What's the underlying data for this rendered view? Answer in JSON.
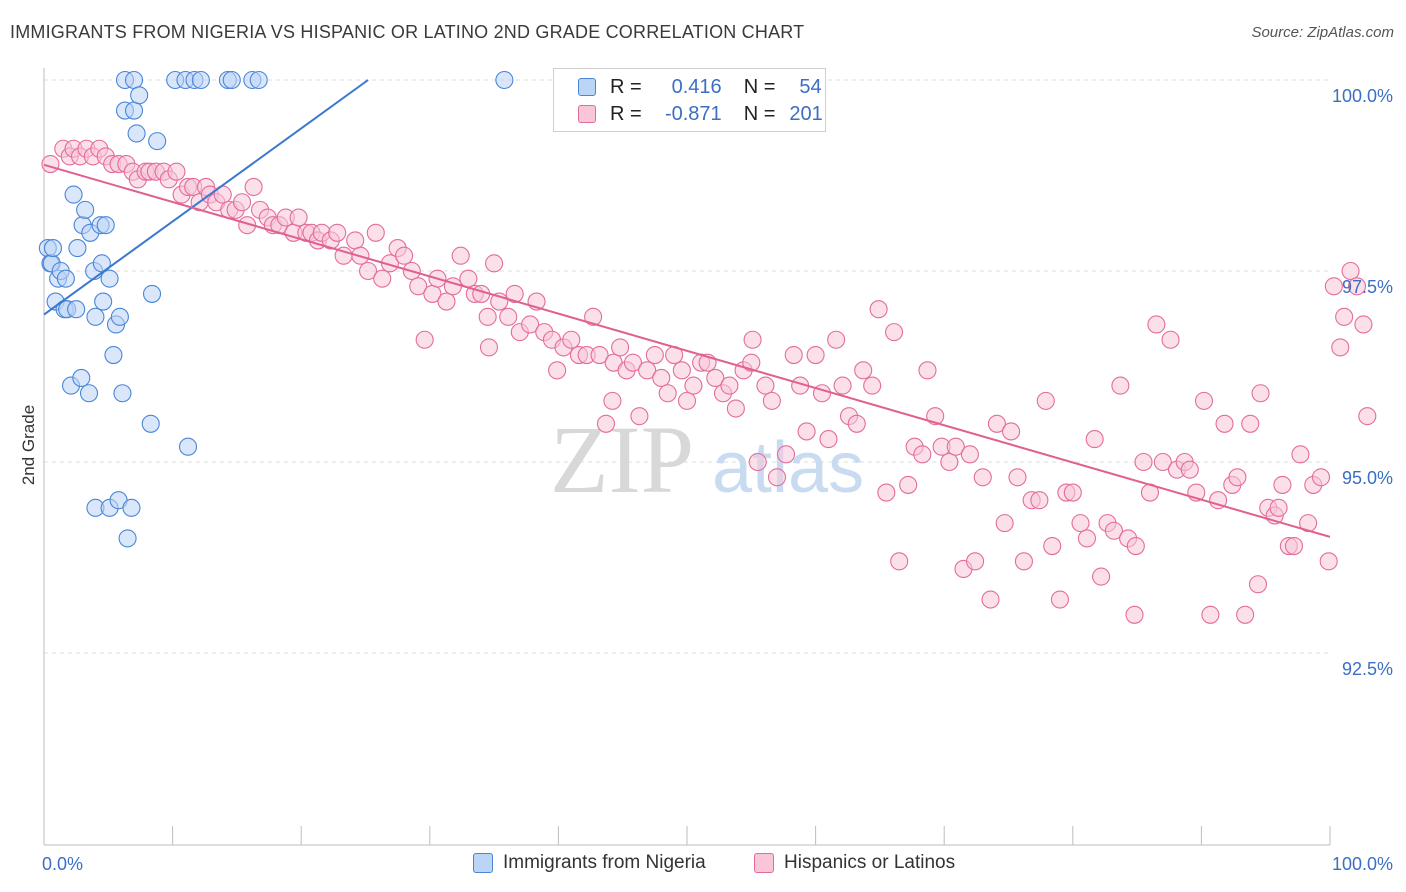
{
  "title": "IMMIGRANTS FROM NIGERIA VS HISPANIC OR LATINO 2ND GRADE CORRELATION CHART",
  "source": "Source: ZipAtlas.com",
  "watermark": {
    "zip": "ZIP",
    "atlas": "atlas"
  },
  "colors": {
    "blue": "#4a86d8",
    "blue_fill": "#bcd4f5",
    "blue_line": "#3a78d0",
    "pink": "#e46c9b",
    "pink_fill": "#f8c6d8",
    "pink_line": "#e0608f",
    "axis_label": "#3b6fc4",
    "grid": "#dcdcdc"
  },
  "legend": {
    "r_label": "R =",
    "n_label": "N =",
    "rows": [
      {
        "r": "0.416",
        "n": "54"
      },
      {
        "r": "-0.871",
        "n": "201"
      }
    ]
  },
  "bottom_legend": [
    "Immigrants from Nigeria",
    "Hispanics or Latinos"
  ],
  "chart_data": {
    "type": "scatter",
    "title": "IMMIGRANTS FROM NIGERIA VS HISPANIC OR LATINO 2ND GRADE CORRELATION CHART",
    "xlabel": "",
    "ylabel": "2nd Grade",
    "xlim": [
      0,
      100
    ],
    "ylim": [
      90.0,
      100.5
    ],
    "x_tick_labels": [
      "0.0%",
      "100.0%"
    ],
    "y_ticks": [
      92.5,
      95.0,
      97.5,
      100.0
    ],
    "y_tick_labels": [
      "92.5%",
      "95.0%",
      "97.5%",
      "100.0%"
    ],
    "grid": true,
    "legend_position": "top-center",
    "series": [
      {
        "name": "Immigrants from Nigeria",
        "color": "blue",
        "trend": {
          "x": [
            0.0,
            25.2
          ],
          "y": [
            96.93,
            100.0
          ]
        },
        "points": [
          [
            0.3,
            97.8
          ],
          [
            0.5,
            97.6
          ],
          [
            0.6,
            97.6
          ],
          [
            0.7,
            97.8
          ],
          [
            0.9,
            97.1
          ],
          [
            1.1,
            97.4
          ],
          [
            1.3,
            97.5
          ],
          [
            1.6,
            97.0
          ],
          [
            1.7,
            97.4
          ],
          [
            1.8,
            97.0
          ],
          [
            2.1,
            96.0
          ],
          [
            2.3,
            98.5
          ],
          [
            2.5,
            97.0
          ],
          [
            2.6,
            97.8
          ],
          [
            2.9,
            96.1
          ],
          [
            3.0,
            98.1
          ],
          [
            3.2,
            98.3
          ],
          [
            3.5,
            95.9
          ],
          [
            3.6,
            98.0
          ],
          [
            3.9,
            97.5
          ],
          [
            4.0,
            96.9
          ],
          [
            4.0,
            94.4
          ],
          [
            4.4,
            98.1
          ],
          [
            4.5,
            97.6
          ],
          [
            4.6,
            97.1
          ],
          [
            4.8,
            98.1
          ],
          [
            5.1,
            97.4
          ],
          [
            5.1,
            94.4
          ],
          [
            5.4,
            96.4
          ],
          [
            5.6,
            96.8
          ],
          [
            5.8,
            94.5
          ],
          [
            5.9,
            96.9
          ],
          [
            6.1,
            95.9
          ],
          [
            6.3,
            99.6
          ],
          [
            6.3,
            100.0
          ],
          [
            6.5,
            94.0
          ],
          [
            6.8,
            94.4
          ],
          [
            7.0,
            99.6
          ],
          [
            7.0,
            100.0
          ],
          [
            7.2,
            99.3
          ],
          [
            7.4,
            99.8
          ],
          [
            8.3,
            95.5
          ],
          [
            8.4,
            97.2
          ],
          [
            8.8,
            99.2
          ],
          [
            10.2,
            100.0
          ],
          [
            11.0,
            100.0
          ],
          [
            11.2,
            95.2
          ],
          [
            11.7,
            100.0
          ],
          [
            12.2,
            100.0
          ],
          [
            14.3,
            100.0
          ],
          [
            14.6,
            100.0
          ],
          [
            16.2,
            100.0
          ],
          [
            16.7,
            100.0
          ],
          [
            35.8,
            100.0
          ]
        ]
      },
      {
        "name": "Hispanics or Latinos",
        "color": "pink",
        "trend": {
          "x": [
            0.0,
            100.0
          ],
          "y": [
            98.89,
            94.02
          ]
        },
        "points": [
          [
            0.5,
            98.9
          ],
          [
            1.5,
            99.1
          ],
          [
            2.0,
            99.0
          ],
          [
            2.3,
            99.1
          ],
          [
            2.8,
            99.0
          ],
          [
            3.3,
            99.1
          ],
          [
            3.8,
            99.0
          ],
          [
            4.3,
            99.1
          ],
          [
            4.8,
            99.0
          ],
          [
            5.3,
            98.9
          ],
          [
            5.8,
            98.9
          ],
          [
            6.4,
            98.9
          ],
          [
            6.9,
            98.8
          ],
          [
            7.3,
            98.7
          ],
          [
            7.9,
            98.8
          ],
          [
            8.2,
            98.8
          ],
          [
            8.7,
            98.8
          ],
          [
            9.3,
            98.8
          ],
          [
            9.7,
            98.7
          ],
          [
            10.3,
            98.8
          ],
          [
            10.7,
            98.5
          ],
          [
            11.2,
            98.6
          ],
          [
            11.6,
            98.6
          ],
          [
            12.1,
            98.4
          ],
          [
            12.6,
            98.6
          ],
          [
            12.9,
            98.5
          ],
          [
            13.4,
            98.4
          ],
          [
            13.9,
            98.5
          ],
          [
            14.4,
            98.3
          ],
          [
            14.9,
            98.3
          ],
          [
            15.4,
            98.4
          ],
          [
            15.8,
            98.1
          ],
          [
            16.3,
            98.6
          ],
          [
            16.8,
            98.3
          ],
          [
            17.4,
            98.2
          ],
          [
            17.8,
            98.1
          ],
          [
            18.3,
            98.1
          ],
          [
            18.8,
            98.2
          ],
          [
            19.4,
            98.0
          ],
          [
            19.8,
            98.2
          ],
          [
            20.4,
            98.0
          ],
          [
            20.8,
            98.0
          ],
          [
            21.3,
            97.9
          ],
          [
            21.6,
            98.0
          ],
          [
            22.3,
            97.9
          ],
          [
            22.8,
            98.0
          ],
          [
            23.3,
            97.7
          ],
          [
            24.2,
            97.9
          ],
          [
            24.6,
            97.7
          ],
          [
            25.2,
            97.5
          ],
          [
            25.8,
            98.0
          ],
          [
            26.3,
            97.4
          ],
          [
            26.9,
            97.6
          ],
          [
            27.5,
            97.8
          ],
          [
            28.0,
            97.7
          ],
          [
            28.6,
            97.5
          ],
          [
            29.1,
            97.3
          ],
          [
            29.6,
            96.6
          ],
          [
            30.2,
            97.2
          ],
          [
            30.6,
            97.4
          ],
          [
            31.3,
            97.1
          ],
          [
            31.8,
            97.3
          ],
          [
            32.4,
            97.7
          ],
          [
            33.0,
            97.4
          ],
          [
            33.5,
            97.2
          ],
          [
            34.0,
            97.2
          ],
          [
            34.5,
            96.9
          ],
          [
            35.0,
            97.6
          ],
          [
            35.4,
            97.1
          ],
          [
            36.1,
            96.9
          ],
          [
            36.6,
            97.2
          ],
          [
            37.0,
            96.7
          ],
          [
            37.8,
            96.8
          ],
          [
            38.3,
            97.1
          ],
          [
            38.9,
            96.7
          ],
          [
            39.5,
            96.6
          ],
          [
            39.9,
            96.2
          ],
          [
            40.4,
            96.5
          ],
          [
            41.0,
            96.6
          ],
          [
            41.6,
            96.4
          ],
          [
            42.2,
            96.4
          ],
          [
            42.7,
            96.9
          ],
          [
            43.2,
            96.4
          ],
          [
            43.7,
            95.5
          ],
          [
            44.3,
            96.3
          ],
          [
            44.8,
            96.5
          ],
          [
            45.3,
            96.2
          ],
          [
            45.8,
            96.3
          ],
          [
            46.3,
            95.6
          ],
          [
            46.9,
            96.2
          ],
          [
            47.5,
            96.4
          ],
          [
            48.0,
            96.1
          ],
          [
            48.5,
            95.9
          ],
          [
            49.0,
            96.4
          ],
          [
            49.6,
            96.2
          ],
          [
            50.0,
            95.8
          ],
          [
            50.5,
            96.0
          ],
          [
            51.1,
            96.3
          ],
          [
            51.6,
            96.3
          ],
          [
            52.2,
            96.1
          ],
          [
            52.8,
            95.9
          ],
          [
            53.3,
            96.0
          ],
          [
            53.8,
            95.7
          ],
          [
            54.4,
            96.2
          ],
          [
            55.0,
            96.3
          ],
          [
            55.5,
            95.0
          ],
          [
            56.1,
            96.0
          ],
          [
            56.6,
            95.8
          ],
          [
            57.0,
            94.8
          ],
          [
            57.7,
            95.1
          ],
          [
            58.3,
            96.4
          ],
          [
            58.8,
            96.0
          ],
          [
            59.3,
            95.4
          ],
          [
            60.0,
            96.4
          ],
          [
            60.5,
            95.9
          ],
          [
            61.0,
            95.3
          ],
          [
            61.6,
            96.6
          ],
          [
            62.1,
            96.0
          ],
          [
            62.6,
            95.6
          ],
          [
            63.2,
            95.5
          ],
          [
            63.7,
            96.2
          ],
          [
            64.4,
            96.0
          ],
          [
            64.9,
            97.0
          ],
          [
            65.5,
            94.6
          ],
          [
            66.1,
            96.7
          ],
          [
            66.5,
            93.7
          ],
          [
            67.2,
            94.7
          ],
          [
            67.7,
            95.2
          ],
          [
            68.3,
            95.1
          ],
          [
            68.7,
            96.2
          ],
          [
            69.3,
            95.6
          ],
          [
            69.8,
            95.2
          ],
          [
            70.4,
            95.0
          ],
          [
            70.9,
            95.2
          ],
          [
            71.5,
            93.6
          ],
          [
            72.0,
            95.1
          ],
          [
            72.4,
            93.7
          ],
          [
            73.0,
            94.8
          ],
          [
            73.6,
            93.2
          ],
          [
            74.1,
            95.5
          ],
          [
            74.7,
            94.2
          ],
          [
            75.2,
            95.4
          ],
          [
            75.7,
            94.8
          ],
          [
            76.2,
            93.7
          ],
          [
            76.8,
            94.5
          ],
          [
            77.4,
            94.5
          ],
          [
            77.9,
            95.8
          ],
          [
            78.4,
            93.9
          ],
          [
            79.0,
            93.2
          ],
          [
            79.5,
            94.6
          ],
          [
            80.0,
            94.6
          ],
          [
            80.6,
            94.2
          ],
          [
            81.1,
            94.0
          ],
          [
            81.7,
            95.3
          ],
          [
            82.2,
            93.5
          ],
          [
            82.7,
            94.2
          ],
          [
            83.2,
            94.1
          ],
          [
            83.7,
            96.0
          ],
          [
            84.3,
            94.0
          ],
          [
            84.9,
            93.9
          ],
          [
            85.5,
            95.0
          ],
          [
            86.0,
            94.6
          ],
          [
            86.5,
            96.8
          ],
          [
            87.0,
            95.0
          ],
          [
            87.6,
            96.6
          ],
          [
            88.1,
            94.9
          ],
          [
            88.7,
            95.0
          ],
          [
            89.1,
            94.9
          ],
          [
            89.6,
            94.6
          ],
          [
            90.2,
            95.8
          ],
          [
            90.7,
            93.0
          ],
          [
            91.3,
            94.5
          ],
          [
            91.8,
            95.5
          ],
          [
            92.4,
            94.7
          ],
          [
            92.8,
            94.8
          ],
          [
            93.4,
            93.0
          ],
          [
            93.8,
            95.5
          ],
          [
            94.4,
            93.4
          ],
          [
            94.6,
            95.9
          ],
          [
            95.2,
            94.4
          ],
          [
            95.7,
            94.3
          ],
          [
            96.3,
            94.7
          ],
          [
            96.8,
            93.9
          ],
          [
            97.2,
            93.9
          ],
          [
            97.7,
            95.1
          ],
          [
            98.3,
            94.2
          ],
          [
            98.7,
            94.7
          ],
          [
            99.3,
            94.8
          ],
          [
            99.9,
            93.7
          ],
          [
            100.3,
            97.3
          ],
          [
            100.8,
            96.5
          ],
          [
            101.1,
            96.9
          ],
          [
            101.6,
            97.5
          ],
          [
            102.1,
            97.3
          ],
          [
            102.6,
            96.8
          ],
          [
            102.9,
            95.6
          ],
          [
            96.0,
            94.4
          ],
          [
            84.8,
            93.0
          ],
          [
            55.1,
            96.6
          ],
          [
            34.6,
            96.5
          ],
          [
            44.2,
            95.8
          ]
        ]
      }
    ]
  }
}
